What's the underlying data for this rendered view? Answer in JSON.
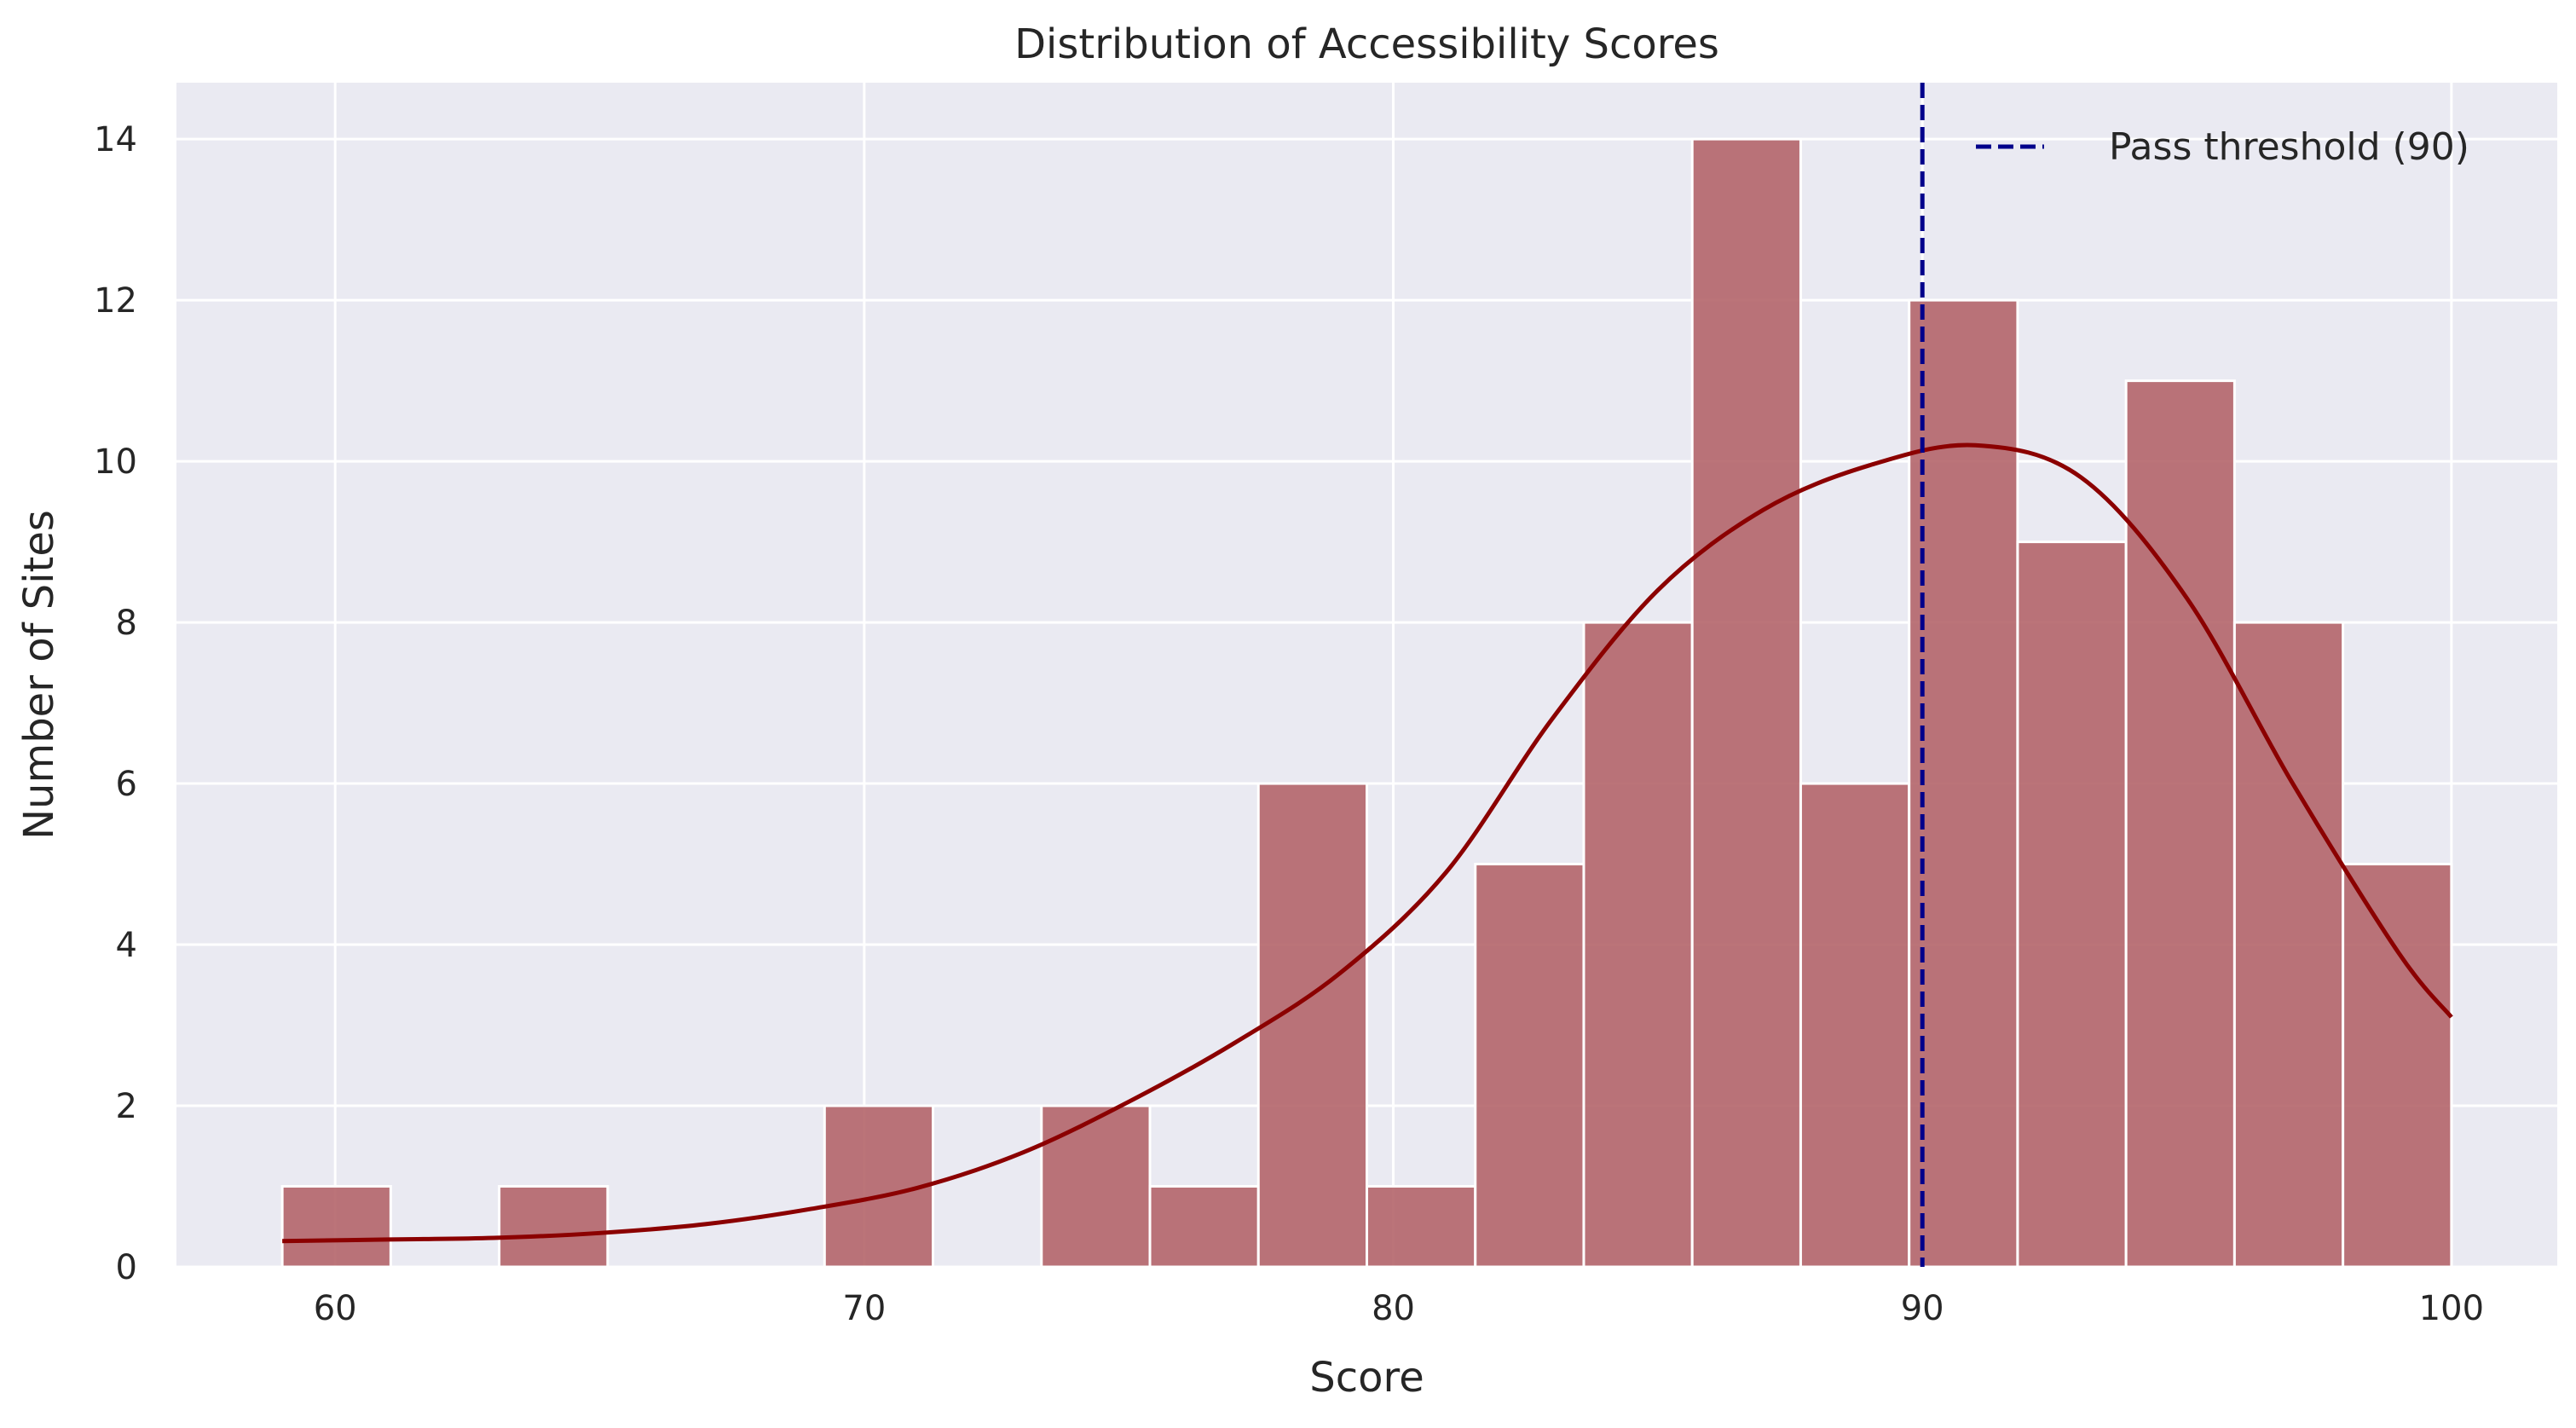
{
  "chart_data": {
    "type": "bar",
    "subtype": "histogram",
    "title": "Distribution of Accessibility Scores",
    "xlabel": "Score",
    "ylabel": "Number of Sites",
    "xlim": [
      57,
      102
    ],
    "ylim": [
      0,
      14.7
    ],
    "xticks": [
      60,
      70,
      80,
      90,
      100
    ],
    "yticks": [
      0,
      2,
      4,
      6,
      8,
      10,
      12,
      14
    ],
    "grid": true,
    "bin_edges": [
      59,
      61.05,
      63.1,
      65.15,
      67.2,
      69.25,
      71.3,
      73.35,
      75.4,
      77.45,
      79.5,
      81.55,
      83.6,
      85.65,
      87.7,
      89.75,
      91.8,
      93.85,
      95.9,
      97.95,
      100
    ],
    "values": [
      1,
      0,
      1,
      0,
      0,
      2,
      0,
      2,
      1,
      6,
      1,
      5,
      8,
      14,
      6,
      12,
      9,
      11,
      8,
      5
    ],
    "bar_color": "#b26166",
    "kde": {
      "name": "KDE",
      "color": "#8b0000",
      "x": [
        59,
        61,
        63,
        65,
        67,
        69,
        71,
        73,
        75,
        77,
        79,
        81,
        83,
        85,
        87,
        89,
        91,
        93,
        95,
        97,
        99,
        100
      ],
      "y": [
        0.32,
        0.34,
        0.36,
        0.42,
        0.53,
        0.72,
        0.98,
        1.42,
        2.05,
        2.78,
        3.65,
        4.9,
        6.8,
        8.4,
        9.4,
        9.95,
        10.2,
        9.8,
        8.3,
        6.0,
        3.9,
        3.1
      ]
    },
    "threshold": {
      "value": 90,
      "label": "Pass threshold (90)",
      "color": "#00008b",
      "style": "dashed"
    },
    "legend_position": "top-right",
    "background_color": "#eaeaf2",
    "grid_color": "#ffffff"
  }
}
